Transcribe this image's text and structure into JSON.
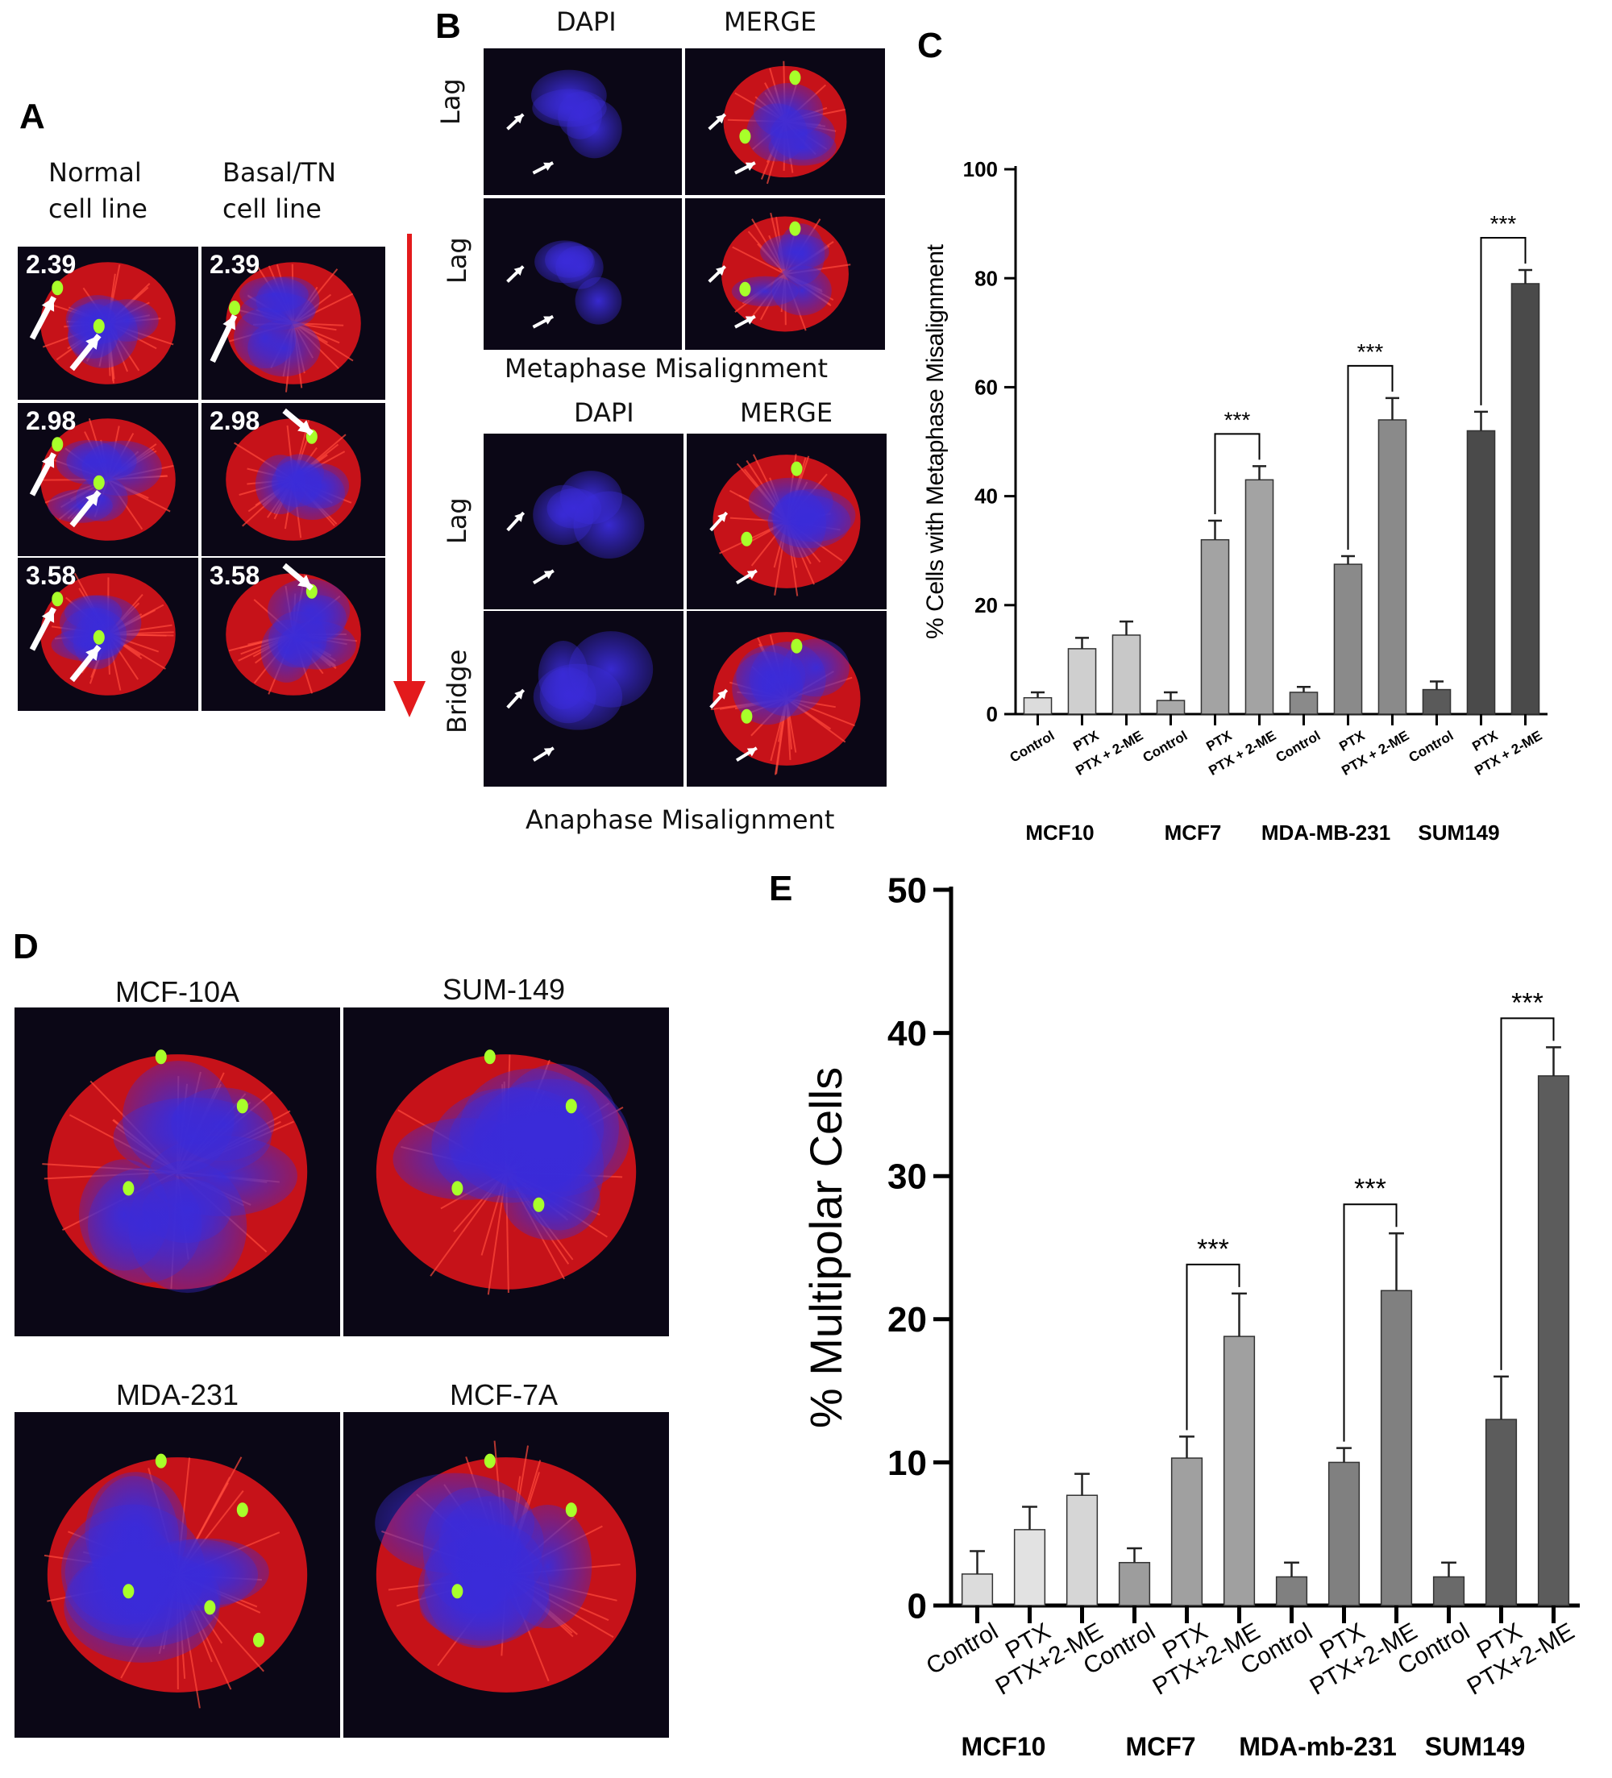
{
  "panels": {
    "a": {
      "letter": "A",
      "col_headers": [
        "Normal\ncell line",
        "Basal/TN\ncell line"
      ],
      "rows": [
        "2.39",
        "2.98",
        "3.58"
      ]
    },
    "b": {
      "letter": "B",
      "top_headers": [
        "DAPI",
        "MERGE"
      ],
      "top_rows": [
        "Lag",
        "Lag"
      ],
      "top_caption": "Metaphase Misalignment",
      "bottom_headers": [
        "DAPI",
        "MERGE"
      ],
      "bottom_rows": [
        "Lag",
        "Bridge"
      ],
      "bottom_caption": "Anaphase Misalignment"
    },
    "c": {
      "letter": "C"
    },
    "d": {
      "letter": "D",
      "labels": [
        "MCF-10A",
        "SUM-149",
        "MDA-231",
        "MCF-7A"
      ]
    },
    "e": {
      "letter": "E"
    }
  },
  "colors": {
    "dapi": "#3a2bd9",
    "tubulin": "#e8141a",
    "centrosome": "#a8ff2a",
    "arrow": "#e31a1c"
  },
  "chart_data": [
    {
      "id": "C",
      "type": "bar",
      "ylabel": "% Cells with  Metaphase Misalignment",
      "ylim": [
        0,
        100
      ],
      "yticks": [
        0,
        20,
        40,
        60,
        80,
        100
      ],
      "categories": [
        "Control",
        "PTX",
        "PTX + 2-ME",
        "Control",
        "PTX",
        "PTX + 2-ME",
        "Control",
        "PTX",
        "PTX + 2-ME",
        "Control",
        "PTX",
        "PTX + 2-ME"
      ],
      "groups": [
        "MCF10",
        "MCF7",
        "MDA-MB-231",
        "SUM149"
      ],
      "values": [
        3,
        12,
        14.5,
        2.5,
        32,
        43,
        4,
        27.5,
        54,
        4.5,
        52,
        79
      ],
      "errors": [
        1,
        2,
        2.5,
        1.5,
        3.5,
        2.5,
        1,
        1.5,
        4,
        1.5,
        3.5,
        2.5
      ],
      "fills": [
        "#dcdcdc",
        "#cfcfcf",
        "#c8c8c8",
        "#a9a9a9",
        "#a3a3a3",
        "#a3a3a3",
        "#8a8a8a",
        "#8a8a8a",
        "#8a8a8a",
        "#5a5a5a",
        "#4a4a4a",
        "#4a4a4a"
      ],
      "significance": [
        {
          "from": 4,
          "to": 5,
          "label": "***"
        },
        {
          "from": 7,
          "to": 8,
          "label": "***"
        },
        {
          "from": 10,
          "to": 11,
          "label": "***"
        }
      ]
    },
    {
      "id": "E",
      "type": "bar",
      "ylabel": "% Multipolar Cells",
      "ylim": [
        0,
        50
      ],
      "yticks": [
        0,
        10,
        20,
        30,
        40,
        50
      ],
      "categories": [
        "Control",
        "PTX",
        "PTX+2-ME",
        "Control",
        "PTX",
        "PTX+2-ME",
        "Control",
        "PTX",
        "PTX+2-ME",
        "Control",
        "PTX",
        "PTX+2-ME"
      ],
      "groups": [
        "MCF10",
        "MCF7",
        "MDA-mb-231",
        "SUM149"
      ],
      "values": [
        2.2,
        5.3,
        7.7,
        3.0,
        10.3,
        18.8,
        2.0,
        10.0,
        22.0,
        2.0,
        13.0,
        37.0
      ],
      "errors": [
        1.6,
        1.6,
        1.5,
        1.0,
        1.5,
        3.0,
        1.0,
        1.0,
        4.0,
        1.0,
        3.0,
        2.0
      ],
      "fills": [
        "#dcdcdc",
        "#e2e2e2",
        "#d6d6d6",
        "#9d9d9d",
        "#a0a0a0",
        "#a0a0a0",
        "#808080",
        "#808080",
        "#808080",
        "#6a6a6a",
        "#5c5c5c",
        "#5c5c5c"
      ],
      "significance": [
        {
          "from": 4,
          "to": 5,
          "label": "***"
        },
        {
          "from": 7,
          "to": 8,
          "label": "***"
        },
        {
          "from": 10,
          "to": 11,
          "label": "***"
        }
      ]
    }
  ]
}
